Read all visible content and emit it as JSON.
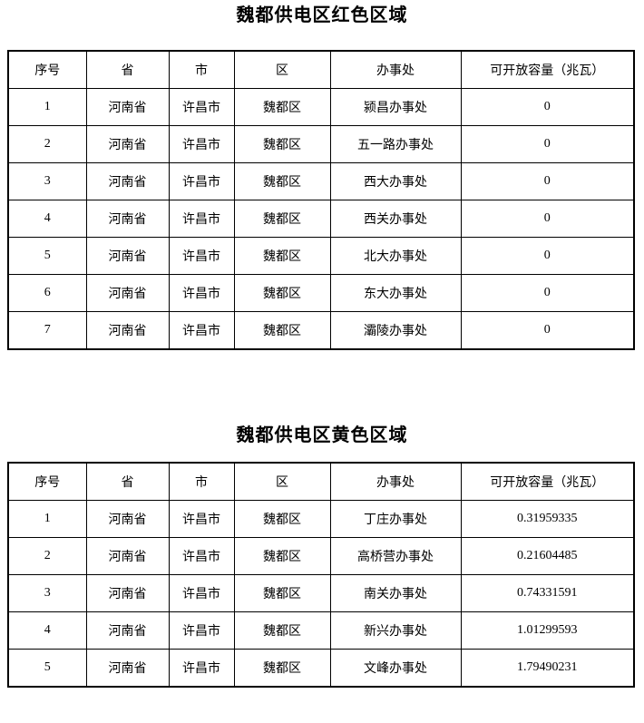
{
  "document": {
    "colors": {
      "background": "#ffffff",
      "border": "#000000",
      "text": "#000000"
    },
    "tables": [
      {
        "title": "魏都供电区红色区域",
        "headers": [
          "序号",
          "省",
          "市",
          "区",
          "办事处",
          "可开放容量（兆瓦）"
        ],
        "rows": [
          [
            "1",
            "河南省",
            "许昌市",
            "魏都区",
            "颍昌办事处",
            "0"
          ],
          [
            "2",
            "河南省",
            "许昌市",
            "魏都区",
            "五一路办事处",
            "0"
          ],
          [
            "3",
            "河南省",
            "许昌市",
            "魏都区",
            "西大办事处",
            "0"
          ],
          [
            "4",
            "河南省",
            "许昌市",
            "魏都区",
            "西关办事处",
            "0"
          ],
          [
            "5",
            "河南省",
            "许昌市",
            "魏都区",
            "北大办事处",
            "0"
          ],
          [
            "6",
            "河南省",
            "许昌市",
            "魏都区",
            "东大办事处",
            "0"
          ],
          [
            "7",
            "河南省",
            "许昌市",
            "魏都区",
            "灞陵办事处",
            "0"
          ]
        ]
      },
      {
        "title": "魏都供电区黄色区域",
        "headers": [
          "序号",
          "省",
          "市",
          "区",
          "办事处",
          "可开放容量（兆瓦）"
        ],
        "rows": [
          [
            "1",
            "河南省",
            "许昌市",
            "魏都区",
            "丁庄办事处",
            "0.31959335"
          ],
          [
            "2",
            "河南省",
            "许昌市",
            "魏都区",
            "高桥营办事处",
            "0.21604485"
          ],
          [
            "3",
            "河南省",
            "许昌市",
            "魏都区",
            "南关办事处",
            "0.74331591"
          ],
          [
            "4",
            "河南省",
            "许昌市",
            "魏都区",
            "新兴办事处",
            "1.01299593"
          ],
          [
            "5",
            "河南省",
            "许昌市",
            "魏都区",
            "文峰办事处",
            "1.79490231"
          ]
        ]
      }
    ]
  }
}
